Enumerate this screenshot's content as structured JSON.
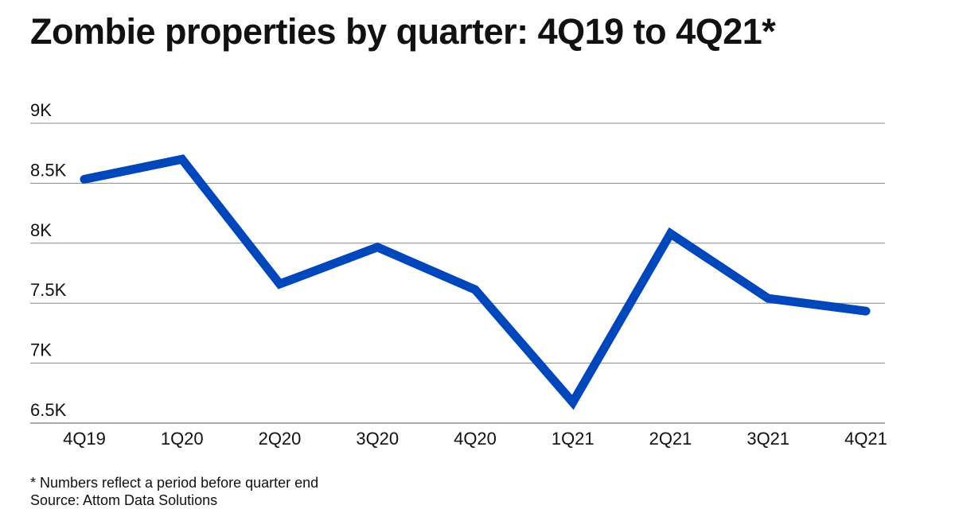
{
  "chart_data": {
    "type": "line",
    "title": "Zombie properties by quarter: 4Q19 to 4Q21*",
    "xlabel": "",
    "ylabel": "",
    "categories": [
      "4Q19",
      "1Q20",
      "2Q20",
      "3Q20",
      "4Q20",
      "1Q21",
      "2Q21",
      "3Q21",
      "4Q21"
    ],
    "series": [
      {
        "name": "Zombie properties",
        "values": [
          8533,
          8700,
          7660,
          7967,
          7613,
          6673,
          8080,
          7540,
          7434
        ],
        "color": "#0047bb"
      }
    ],
    "ylim": [
      6500,
      9000
    ],
    "yticks": [
      6500,
      7000,
      7500,
      8000,
      8500,
      9000
    ],
    "ytick_labels": [
      "6.5K",
      "7K",
      "7.5K",
      "8K",
      "8.5K",
      "9K"
    ],
    "grid": true,
    "legend": "none"
  },
  "footnote": "* Numbers reflect a period before quarter end",
  "source": "Source: Attom Data Solutions"
}
